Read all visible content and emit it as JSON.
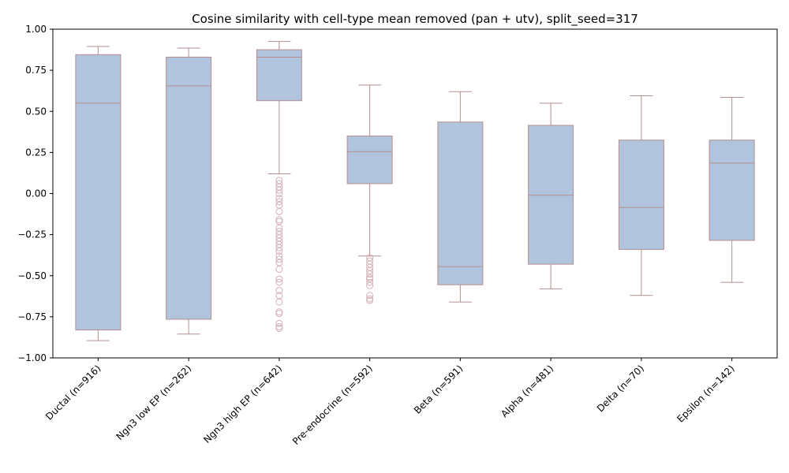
{
  "chart_data": {
    "type": "boxplot",
    "title": "Cosine similarity with cell-type mean removed (pan + utv), split_seed=317",
    "xlabel": "",
    "ylabel": "",
    "ylim": [
      -1.0,
      1.0
    ],
    "yticks": [
      -1.0,
      -0.75,
      -0.5,
      -0.25,
      0.0,
      0.25,
      0.5,
      0.75,
      1.0
    ],
    "ytick_labels": [
      "−1.00",
      "−0.75",
      "−0.50",
      "−0.25",
      "0.00",
      "0.25",
      "0.50",
      "0.75",
      "1.00"
    ],
    "grid": false,
    "colors": {
      "box_fill": "#b0c4de",
      "box_edge": "#b58f8f",
      "outlier_edge": "#d4b0b8"
    },
    "categories": [
      "Ductal (n=916)",
      "Ngn3 low EP (n=262)",
      "Ngn3 high EP (n=642)",
      "Pre-endocrine (n=592)",
      "Beta (n=591)",
      "Alpha (n=481)",
      "Delta (n=70)",
      "Epsilon (n=142)"
    ],
    "boxes": [
      {
        "whisker_low": -0.895,
        "q1": -0.83,
        "median": 0.55,
        "q3": 0.845,
        "whisker_high": 0.895,
        "outliers": []
      },
      {
        "whisker_low": -0.855,
        "q1": -0.765,
        "median": 0.655,
        "q3": 0.83,
        "whisker_high": 0.885,
        "outliers": []
      },
      {
        "whisker_low": 0.12,
        "q1": 0.565,
        "median": 0.83,
        "q3": 0.875,
        "whisker_high": 0.925,
        "outliers": [
          0.08,
          0.06,
          0.04,
          0.02,
          0.0,
          -0.03,
          -0.05,
          -0.07,
          -0.11,
          -0.16,
          -0.17,
          -0.21,
          -0.23,
          -0.25,
          -0.27,
          -0.29,
          -0.31,
          -0.33,
          -0.35,
          -0.38,
          -0.4,
          -0.42,
          -0.46,
          -0.52,
          -0.54,
          -0.59,
          -0.62,
          -0.66,
          -0.72,
          -0.73,
          -0.79,
          -0.81,
          -0.82
        ]
      },
      {
        "whisker_low": -0.38,
        "q1": 0.06,
        "median": 0.255,
        "q3": 0.35,
        "whisker_high": 0.66,
        "outliers": [
          -0.39,
          -0.41,
          -0.43,
          -0.45,
          -0.47,
          -0.49,
          -0.51,
          -0.52,
          -0.54,
          -0.56,
          -0.62,
          -0.64,
          -0.65
        ]
      },
      {
        "whisker_low": -0.66,
        "q1": -0.555,
        "median": -0.445,
        "q3": 0.435,
        "whisker_high": 0.62,
        "outliers": []
      },
      {
        "whisker_low": -0.58,
        "q1": -0.43,
        "median": -0.01,
        "q3": 0.415,
        "whisker_high": 0.55,
        "outliers": []
      },
      {
        "whisker_low": -0.62,
        "q1": -0.34,
        "median": -0.085,
        "q3": 0.325,
        "whisker_high": 0.595,
        "outliers": []
      },
      {
        "whisker_low": -0.54,
        "q1": -0.285,
        "median": 0.185,
        "q3": 0.325,
        "whisker_high": 0.585,
        "outliers": []
      }
    ]
  }
}
